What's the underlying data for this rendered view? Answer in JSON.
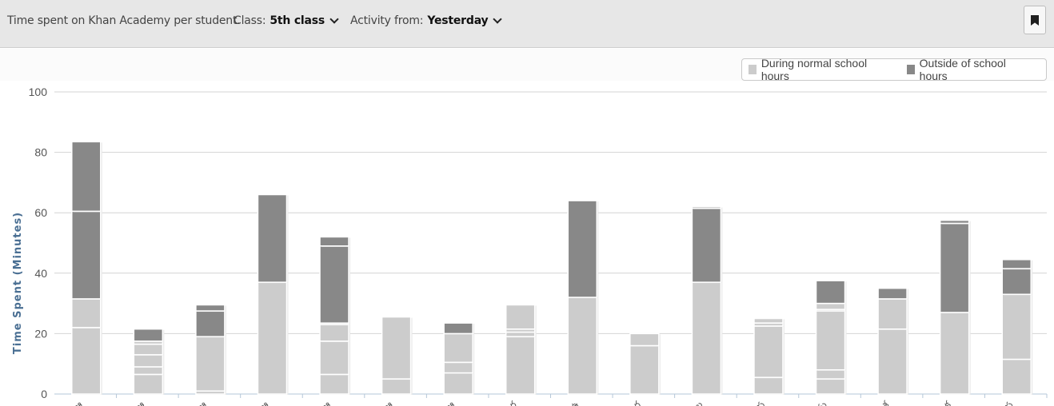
{
  "header": {
    "title": "Time spent on Khan Academy per student.",
    "class_label": "Class:",
    "class_value": "5th class",
    "activity_label": "Activity from:",
    "activity_value": "Yesterday",
    "bookmark_icon": "bookmark-icon"
  },
  "colors": {
    "during": "#cccccc",
    "outside": "#888888",
    "segment_border": "#ffffff",
    "grid": "#d4d4d4",
    "axis_label": "#4a6f93"
  },
  "legend": {
    "placement": "top-right",
    "during_label": "During normal school hours",
    "outside_label": "Outside of school hours"
  },
  "chart_data": {
    "type": "bar",
    "stacked": true,
    "title": "",
    "xlabel": "",
    "ylabel": "Time Spent (Minutes)",
    "ylim": [
      0,
      100
    ],
    "yticks": [
      0,
      20,
      40,
      60,
      80,
      100
    ],
    "grid": true,
    "categories": [
      "ఆ",
      "ఆ",
      "ఆ",
      "ఆ",
      "ఆ",
      "ఆ",
      "ఆ",
      "ర",
      "ఉ",
      "గ",
      "ల",
      "ప",
      "మ",
      "శ",
      "క",
      "స"
    ],
    "series": [
      {
        "name": "During normal school hours",
        "segments": [
          [
            22,
            9.5
          ],
          [
            6.5,
            2.5,
            4,
            3.5,
            1
          ],
          [
            1,
            18
          ],
          [
            37
          ],
          [
            6.5,
            11,
            5.5,
            0.5
          ],
          [
            5,
            20.5
          ],
          [
            7,
            3.5,
            9.5
          ],
          [
            19,
            1.5,
            1,
            8
          ],
          [
            32
          ],
          [
            16,
            4
          ],
          [
            37
          ],
          [
            5.5,
            17,
            1,
            1.5
          ],
          [
            5,
            3,
            19.5,
            0.5,
            2
          ],
          [
            21.5,
            10
          ],
          [
            27
          ],
          [
            11.5,
            21.5
          ]
        ]
      },
      {
        "name": "Outside of school hours",
        "segments": [
          [
            29,
            23
          ],
          [
            4
          ],
          [
            8.5,
            2
          ],
          [
            29
          ],
          [
            25.5,
            3
          ],
          [],
          [
            3.5
          ],
          [],
          [
            32
          ],
          [],
          [
            24.5,
            0.5
          ],
          [],
          [
            7.5
          ],
          [
            3.5
          ],
          [
            29.5,
            1
          ],
          [
            8.5,
            3
          ]
        ]
      }
    ]
  }
}
